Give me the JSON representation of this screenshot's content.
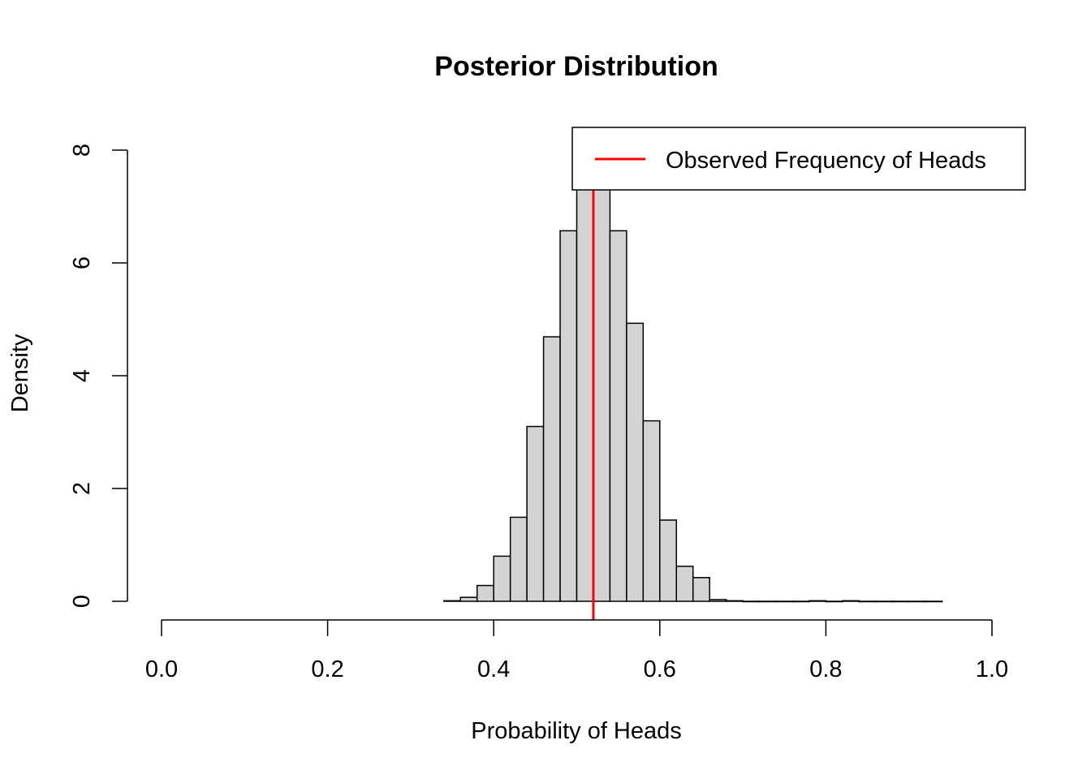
{
  "chart_data": {
    "type": "bar",
    "subtype": "histogram",
    "title": "Posterior Distribution",
    "xlabel": "Probability of Heads",
    "ylabel": "Density",
    "xlim": [
      0.0,
      1.0
    ],
    "ylim": [
      0,
      8
    ],
    "x_ticks": [
      "0.0",
      "0.2",
      "0.4",
      "0.6",
      "0.8",
      "1.0"
    ],
    "y_ticks": [
      "0",
      "2",
      "4",
      "6",
      "8"
    ],
    "bin_width": 0.02,
    "bins": [
      {
        "start": 0.34,
        "end": 0.36,
        "density": 0.01
      },
      {
        "start": 0.36,
        "end": 0.38,
        "density": 0.07
      },
      {
        "start": 0.38,
        "end": 0.4,
        "density": 0.28
      },
      {
        "start": 0.4,
        "end": 0.42,
        "density": 0.8
      },
      {
        "start": 0.42,
        "end": 0.44,
        "density": 1.49
      },
      {
        "start": 0.44,
        "end": 0.46,
        "density": 3.1
      },
      {
        "start": 0.46,
        "end": 0.48,
        "density": 4.69
      },
      {
        "start": 0.48,
        "end": 0.5,
        "density": 6.57
      },
      {
        "start": 0.5,
        "end": 0.52,
        "density": 7.45
      },
      {
        "start": 0.52,
        "end": 0.54,
        "density": 7.45
      },
      {
        "start": 0.54,
        "end": 0.56,
        "density": 6.57
      },
      {
        "start": 0.56,
        "end": 0.58,
        "density": 4.93
      },
      {
        "start": 0.58,
        "end": 0.6,
        "density": 3.2
      },
      {
        "start": 0.6,
        "end": 0.62,
        "density": 1.44
      },
      {
        "start": 0.62,
        "end": 0.64,
        "density": 0.62
      },
      {
        "start": 0.64,
        "end": 0.66,
        "density": 0.42
      },
      {
        "start": 0.66,
        "end": 0.68,
        "density": 0.03
      },
      {
        "start": 0.68,
        "end": 0.7,
        "density": 0.01
      },
      {
        "start": 0.7,
        "end": 0.72,
        "density": 0.0
      },
      {
        "start": 0.72,
        "end": 0.74,
        "density": 0.0
      },
      {
        "start": 0.74,
        "end": 0.76,
        "density": 0.0
      },
      {
        "start": 0.76,
        "end": 0.78,
        "density": 0.0
      },
      {
        "start": 0.78,
        "end": 0.8,
        "density": 0.01
      },
      {
        "start": 0.8,
        "end": 0.82,
        "density": 0.0
      },
      {
        "start": 0.82,
        "end": 0.84,
        "density": 0.01
      },
      {
        "start": 0.84,
        "end": 0.86,
        "density": 0.0
      },
      {
        "start": 0.86,
        "end": 0.88,
        "density": 0.0
      },
      {
        "start": 0.88,
        "end": 0.9,
        "density": 0.0
      },
      {
        "start": 0.9,
        "end": 0.92,
        "density": 0.0
      },
      {
        "start": 0.92,
        "end": 0.94,
        "density": 0.0
      }
    ],
    "reference_line": {
      "name": "Observed Frequency of Heads",
      "x": 0.52,
      "color": "#ff0000"
    },
    "bar_fill": "#d3d3d3",
    "bar_stroke": "#000000",
    "legend": {
      "position": "top-right",
      "entries": [
        {
          "label": "Observed Frequency of Heads",
          "color": "#ff0000",
          "style": "line"
        }
      ]
    },
    "grid": false
  }
}
